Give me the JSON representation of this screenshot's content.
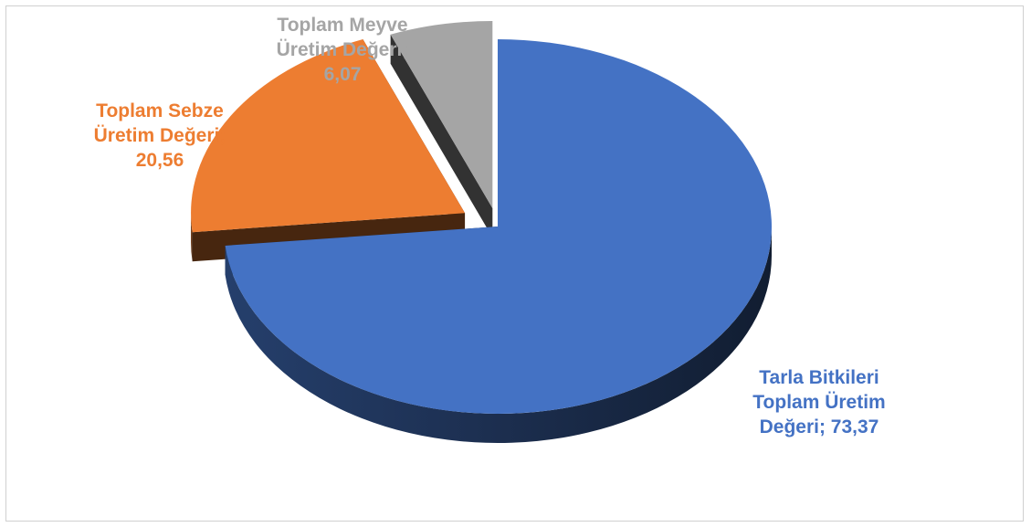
{
  "chart_data": {
    "type": "pie",
    "title": "",
    "categories": [
      "Tarla Bitkileri Toplam Üretim Değeri",
      "Toplam Sebze Üretim Değeri",
      "Toplam Meyve Üretim Değeri"
    ],
    "values": [
      73.37,
      20.56,
      6.07
    ],
    "colors": [
      "#4472c4",
      "#ed7d31",
      "#a5a5a5"
    ],
    "data_labels": [
      [
        "Tarla Bitkileri",
        "Toplam Üretim",
        "Değeri; 73,37"
      ],
      [
        "Toplam Sebze",
        "Üretim Değeri;",
        "20,56"
      ],
      [
        "Toplam Meyve",
        "Üretim Değeri;",
        "6,07"
      ]
    ],
    "label_colors": [
      "#4472c4",
      "#ed7d31",
      "#a5a5a5"
    ],
    "style": "3d-exploded",
    "legend": "none"
  }
}
